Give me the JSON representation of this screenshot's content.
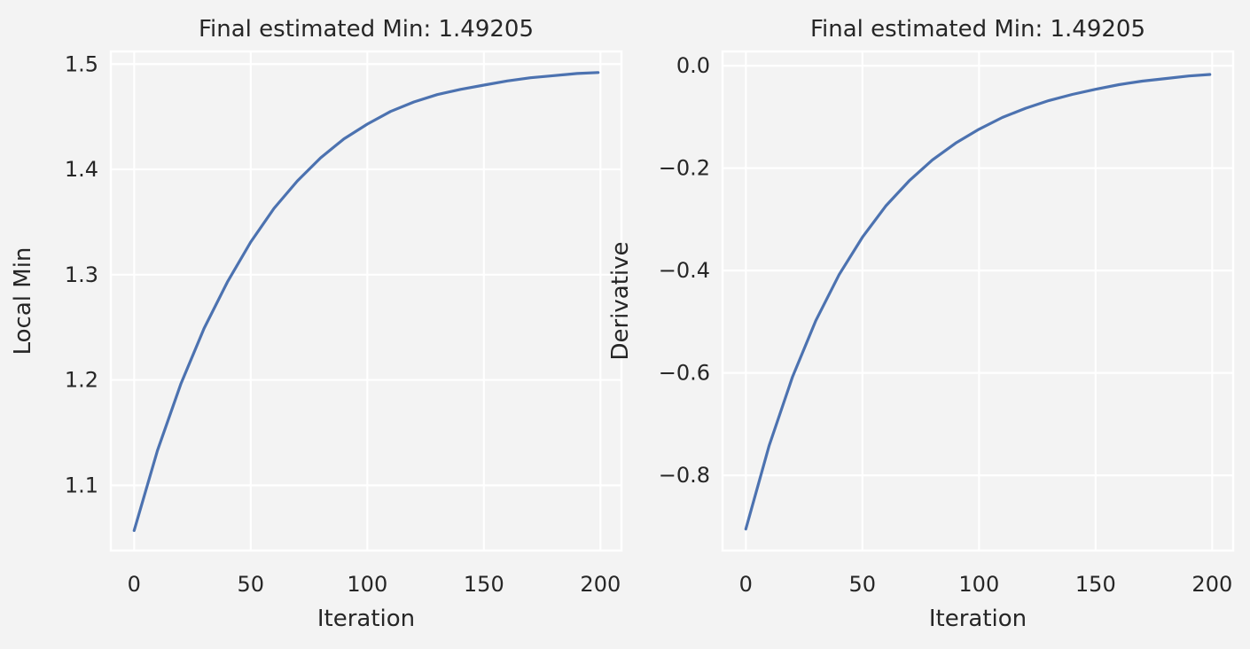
{
  "chart_data": [
    {
      "type": "line",
      "title": "Final estimated Min: 1.49205",
      "xlabel": "Iteration",
      "ylabel": "Local Min",
      "xlim": [
        -10,
        209
      ],
      "ylim": [
        1.038,
        1.512
      ],
      "xticks": [
        0,
        50,
        100,
        150,
        200
      ],
      "xtick_labels": [
        "0",
        "50",
        "100",
        "150",
        "200"
      ],
      "yticks": [
        1.1,
        1.2,
        1.3,
        1.4,
        1.5
      ],
      "ytick_labels": [
        "1.1",
        "1.2",
        "1.3",
        "1.4",
        "1.5"
      ],
      "grid": true,
      "line_color": "#4c72b0",
      "series": [
        {
          "name": "Local Min",
          "x": [
            0,
            10,
            20,
            30,
            40,
            50,
            60,
            70,
            80,
            90,
            100,
            110,
            120,
            130,
            140,
            150,
            160,
            170,
            180,
            190,
            199
          ],
          "values": [
            1.057,
            1.133,
            1.196,
            1.249,
            1.293,
            1.331,
            1.363,
            1.389,
            1.411,
            1.429,
            1.443,
            1.455,
            1.464,
            1.471,
            1.476,
            1.48,
            1.484,
            1.487,
            1.489,
            1.491,
            1.492
          ]
        }
      ]
    },
    {
      "type": "line",
      "title": "Final estimated Min: 1.49205",
      "xlabel": "Iteration",
      "ylabel": "Derivative",
      "xlim": [
        -10,
        209
      ],
      "ylim": [
        -0.947,
        0.028
      ],
      "xticks": [
        0,
        50,
        100,
        150,
        200
      ],
      "xtick_labels": [
        "0",
        "50",
        "100",
        "150",
        "200"
      ],
      "yticks": [
        -0.8,
        -0.6,
        -0.4,
        -0.2,
        0.0
      ],
      "ytick_labels": [
        "−0.8",
        "−0.6",
        "−0.4",
        "−0.2",
        "0.0"
      ],
      "grid": true,
      "line_color": "#4c72b0",
      "series": [
        {
          "name": "Derivative",
          "x": [
            0,
            10,
            20,
            30,
            40,
            50,
            60,
            70,
            80,
            90,
            100,
            110,
            120,
            130,
            140,
            150,
            160,
            170,
            180,
            190,
            199
          ],
          "values": [
            -0.905,
            -0.742,
            -0.608,
            -0.498,
            -0.408,
            -0.335,
            -0.274,
            -0.225,
            -0.184,
            -0.151,
            -0.124,
            -0.101,
            -0.083,
            -0.068,
            -0.056,
            -0.046,
            -0.037,
            -0.03,
            -0.025,
            -0.02,
            -0.017
          ]
        }
      ]
    }
  ]
}
